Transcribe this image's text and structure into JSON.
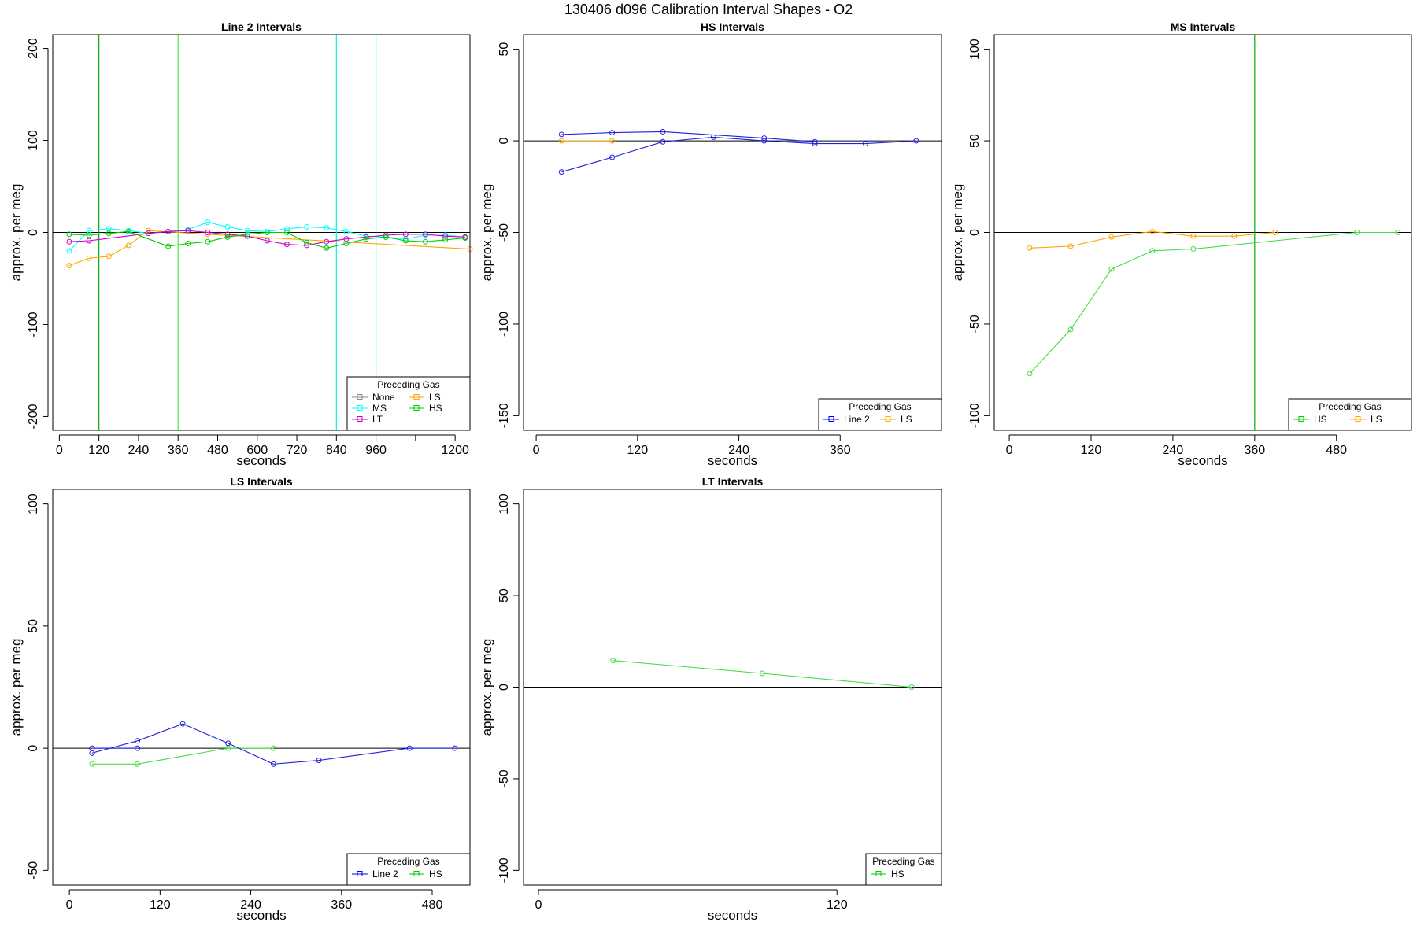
{
  "figure_title": "130406   d096   Calibration Interval Shapes - O2",
  "chart_data": [
    {
      "type": "line",
      "title": "Line 2 Intervals",
      "xlabel": "seconds",
      "ylabel": "approx. per meg",
      "xlim": [
        -20,
        1245
      ],
      "ylim": [
        -215,
        215
      ],
      "xticks": [
        0,
        120,
        240,
        360,
        480,
        600,
        720,
        840,
        960,
        1080,
        1200
      ],
      "xtick_labels": [
        "0",
        "120",
        "240",
        "360",
        "480",
        "600",
        "720",
        "840",
        "960",
        "",
        "1200"
      ],
      "yticks": [
        -200,
        -100,
        0,
        100,
        200
      ],
      "ytick_labels": [
        "-200",
        "-100",
        "0",
        "100",
        "200"
      ],
      "hlines": [
        {
          "y": 0,
          "color": "#000000"
        }
      ],
      "vlines": [
        {
          "x": 120,
          "color": "#00aa00"
        },
        {
          "x": 360,
          "color": "#44ee44"
        },
        {
          "x": 840,
          "color": "#00eeee"
        },
        {
          "x": 960,
          "color": "#00eeee"
        }
      ],
      "legend": {
        "title": "Preceding Gas",
        "position": "bottom-right",
        "columns": 2,
        "entries": [
          {
            "label": "None",
            "color": "#888888"
          },
          {
            "label": "LS",
            "color": "#ffa500"
          },
          {
            "label": "MS",
            "color": "#00ffff"
          },
          {
            "label": "HS",
            "color": "#00cc00"
          },
          {
            "label": "LT",
            "color": "#cc00cc"
          }
        ]
      },
      "series": [
        {
          "name": "MS",
          "color": "#00ffff",
          "x": [
            30,
            90,
            150,
            210,
            270,
            330,
            390,
            450,
            510,
            570,
            630,
            690,
            750,
            810,
            870,
            930,
            990,
            1050,
            1110,
            1170,
            1230
          ],
          "y": [
            -20,
            2,
            4,
            2,
            -1,
            1,
            3,
            11,
            6,
            2,
            1,
            4,
            6,
            5,
            1,
            -4,
            -5,
            -7,
            -3,
            -3,
            -5
          ]
        },
        {
          "name": "LS",
          "color": "#ffa500",
          "x": [
            30,
            90,
            150,
            210,
            270,
            450,
            1245
          ],
          "y": [
            -36,
            -28,
            -26,
            -14,
            2,
            -2,
            -18
          ]
        },
        {
          "name": "LT",
          "color": "#cc00cc",
          "x": [
            30,
            90,
            270,
            330,
            390,
            450,
            510,
            570,
            630,
            690,
            750,
            810,
            870,
            930,
            990,
            1050,
            1110,
            1170,
            1230
          ],
          "y": [
            -10,
            -9,
            -1,
            1,
            2,
            0,
            -2,
            -4,
            -9,
            -13,
            -14,
            -10,
            -7,
            -5,
            -3,
            -2,
            -2,
            -4,
            -5
          ]
        },
        {
          "name": "HS",
          "color": "#00cc00",
          "x": [
            30,
            90,
            150,
            210,
            330,
            390,
            450,
            510,
            570,
            630,
            690,
            750,
            810,
            870,
            930,
            990,
            1050,
            1110,
            1170,
            1230
          ],
          "y": [
            -2,
            -3,
            -1,
            1,
            -15,
            -12,
            -10,
            -5,
            -2,
            0,
            0,
            -11,
            -17,
            -12,
            -7,
            -5,
            -9,
            -10,
            -8,
            -6
          ]
        }
      ]
    },
    {
      "type": "line",
      "title": "HS Intervals",
      "xlabel": "seconds",
      "ylabel": "approx. per meg",
      "xlim": [
        -15,
        480
      ],
      "ylim": [
        -158,
        58
      ],
      "xticks": [
        0,
        120,
        240,
        360
      ],
      "xtick_labels": [
        "0",
        "120",
        "240",
        "360"
      ],
      "yticks": [
        -150,
        -100,
        -50,
        0,
        50
      ],
      "ytick_labels": [
        "-150",
        "-100",
        "-50",
        "0",
        "50"
      ],
      "hlines": [
        {
          "y": 0,
          "color": "#000000"
        }
      ],
      "vlines": [],
      "legend": {
        "title": "Preceding Gas",
        "position": "bottom-right",
        "columns": 2,
        "entries": [
          {
            "label": "Line 2",
            "color": "#0000ff"
          },
          {
            "label": "LS",
            "color": "#ffa500"
          }
        ]
      },
      "series": [
        {
          "name": "LS",
          "color": "#ffa500",
          "x": [
            30,
            90
          ],
          "y": [
            0,
            0
          ]
        },
        {
          "name": "Line 2",
          "color": "#2222dd",
          "x": [
            30,
            90,
            150,
            210,
            270,
            330,
            390,
            450
          ],
          "y": [
            -17,
            -9,
            -0.5,
            2,
            0,
            -1.5,
            -1.5,
            0
          ]
        },
        {
          "name": "Line 2",
          "color": "#2222dd",
          "x": [
            30,
            90,
            150,
            270,
            330
          ],
          "y": [
            3.5,
            4.5,
            5,
            1.5,
            -0.5
          ]
        }
      ]
    },
    {
      "type": "line",
      "title": "MS Intervals",
      "xlabel": "seconds",
      "ylabel": "approx. per meg",
      "xlim": [
        -22,
        590
      ],
      "ylim": [
        -108,
        108
      ],
      "xticks": [
        0,
        120,
        240,
        360,
        480
      ],
      "xtick_labels": [
        "0",
        "120",
        "240",
        "360",
        "480"
      ],
      "yticks": [
        -100,
        -50,
        0,
        50,
        100
      ],
      "ytick_labels": [
        "-100",
        "-50",
        "0",
        "50",
        "100"
      ],
      "hlines": [
        {
          "y": 0,
          "color": "#000000"
        }
      ],
      "vlines": [
        {
          "x": 360,
          "color": "#00aa00"
        }
      ],
      "legend": {
        "title": "Preceding Gas",
        "position": "bottom-right",
        "columns": 2,
        "entries": [
          {
            "label": "HS",
            "color": "#00cc00"
          },
          {
            "label": "LS",
            "color": "#ffa500"
          }
        ]
      },
      "series": [
        {
          "name": "LS",
          "color": "#ffa500",
          "x": [
            30,
            90,
            150,
            210,
            270,
            330,
            390
          ],
          "y": [
            -8.5,
            -7.5,
            -2.5,
            0.5,
            -2,
            -2,
            0
          ]
        },
        {
          "name": "HS",
          "color": "#44dd44",
          "x": [
            30,
            90,
            150,
            210,
            270,
            510,
            570
          ],
          "y": [
            -77,
            -53,
            -20,
            -10,
            -9,
            0,
            0
          ]
        }
      ]
    },
    {
      "type": "line",
      "title": "LS Intervals",
      "xlabel": "seconds",
      "ylabel": "approx. per meg",
      "xlim": [
        -22,
        530
      ],
      "ylim": [
        -56,
        106
      ],
      "xticks": [
        0,
        120,
        240,
        360,
        480
      ],
      "xtick_labels": [
        "0",
        "120",
        "240",
        "360",
        "480"
      ],
      "yticks": [
        -50,
        0,
        50,
        100
      ],
      "ytick_labels": [
        "-50",
        "0",
        "50",
        "100"
      ],
      "hlines": [
        {
          "y": 0,
          "color": "#000000"
        }
      ],
      "vlines": [],
      "legend": {
        "title": "Preceding Gas",
        "position": "bottom-right",
        "columns": 2,
        "entries": [
          {
            "label": "Line 2",
            "color": "#0000ff"
          },
          {
            "label": "HS",
            "color": "#00cc00"
          }
        ]
      },
      "series": [
        {
          "name": "HS",
          "color": "#44dd44",
          "x": [
            30,
            90,
            210,
            270
          ],
          "y": [
            -6.5,
            -6.5,
            0,
            0
          ]
        },
        {
          "name": "Line 2",
          "color": "#2222dd",
          "x": [
            30,
            90,
            150,
            210,
            270,
            330,
            450,
            510
          ],
          "y": [
            -2,
            3,
            10,
            2,
            -6.5,
            -5,
            0,
            0
          ]
        },
        {
          "name": "Line 2",
          "color": "#2222dd",
          "x": [
            30,
            90
          ],
          "y": [
            0,
            0
          ]
        }
      ]
    },
    {
      "type": "line",
      "title": "LT Intervals",
      "xlabel": "seconds",
      "ylabel": "approx. per meg",
      "xlim": [
        -6,
        162
      ],
      "ylim": [
        -108,
        108
      ],
      "xticks": [
        0,
        120
      ],
      "xtick_labels": [
        "0",
        "120"
      ],
      "yticks": [
        -100,
        -50,
        0,
        50,
        100
      ],
      "ytick_labels": [
        "-100",
        "-50",
        "0",
        "50",
        "100"
      ],
      "hlines": [
        {
          "y": 0,
          "color": "#000000"
        }
      ],
      "vlines": [],
      "legend": {
        "title": "Preceding Gas",
        "position": "bottom-right",
        "columns": 1,
        "entries": [
          {
            "label": "HS",
            "color": "#00cc00"
          }
        ]
      },
      "series": [
        {
          "name": "HS",
          "color": "#44dd44",
          "x": [
            30,
            90,
            150
          ],
          "y": [
            14.5,
            7.5,
            0
          ]
        }
      ]
    }
  ]
}
